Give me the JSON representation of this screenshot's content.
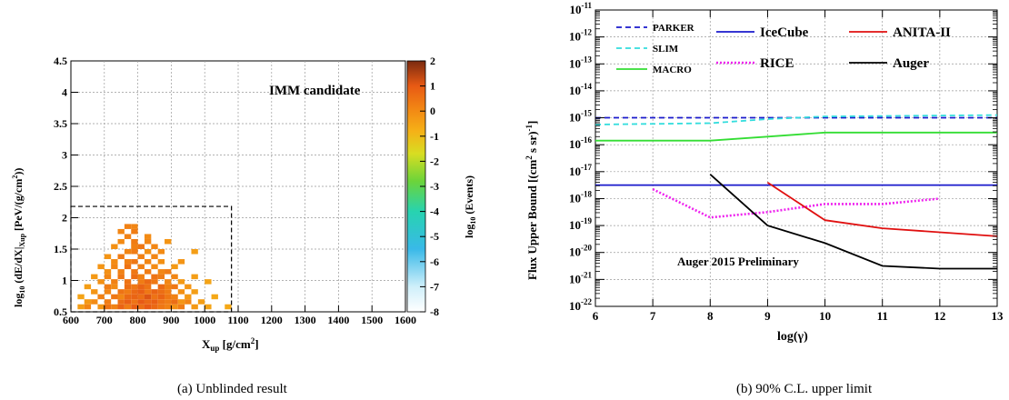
{
  "captions": {
    "left": "(a)  Unblinded result",
    "right": "(b)  90% C.L. upper limit"
  },
  "chart_data": [
    {
      "type": "heatmap",
      "xlabel_main": "X",
      "xlabel_sub": "up",
      "xlabel_rest": " [g/cm",
      "xlabel_sup": "2",
      "xlabel_end": "]",
      "ylabel_main": "log",
      "ylabel_sub1": "10",
      "ylabel_mid": " (dE/dX|",
      "ylabel_sub2": "Xup",
      "ylabel_rest": "    [PeV/(g/cm",
      "ylabel_sup": "2",
      "ylabel_end": "))",
      "zlabel_main": "log",
      "zlabel_sub": "10",
      "zlabel_rest": " (Events)",
      "annotation": "IMM candidate",
      "xlim": [
        600,
        1600
      ],
      "ylim": [
        0.5,
        4.5
      ],
      "zlim": [
        -8,
        2
      ],
      "x_ticks": [
        "600",
        "700",
        "800",
        "900",
        "1000",
        "1100",
        "1200",
        "1300",
        "1400",
        "1500",
        "1600"
      ],
      "y_ticks": [
        "0.5",
        "1",
        "1.5",
        "2",
        "2.5",
        "3",
        "3.5",
        "4",
        "4.5"
      ],
      "z_ticks": [
        "-8",
        "-7",
        "-6",
        "-5",
        "-4",
        "-3",
        "-2",
        "-1",
        "0",
        "1",
        "2"
      ],
      "signal_region": {
        "x": [
          600,
          1080
        ],
        "y": [
          0.5,
          2.18
        ]
      },
      "bin_width": {
        "x": 20,
        "y": 0.08
      },
      "cells": [
        [
          620,
          0.54,
          -0.4
        ],
        [
          640,
          0.54,
          0.1
        ],
        [
          680,
          0.54,
          -0.2
        ],
        [
          700,
          0.54,
          0.5
        ],
        [
          720,
          0.54,
          0.2
        ],
        [
          740,
          0.54,
          0.8
        ],
        [
          760,
          0.54,
          0.3
        ],
        [
          780,
          0.54,
          0.9
        ],
        [
          800,
          0.54,
          0.6
        ],
        [
          820,
          0.54,
          1.0
        ],
        [
          840,
          0.54,
          0.7
        ],
        [
          860,
          0.54,
          0.4
        ],
        [
          880,
          0.54,
          0.2
        ],
        [
          900,
          0.54,
          -0.1
        ],
        [
          920,
          0.54,
          0.3
        ],
        [
          960,
          0.54,
          -0.3
        ],
        [
          1000,
          0.54,
          -0.5
        ],
        [
          1060,
          0.54,
          -0.6
        ],
        [
          640,
          0.62,
          -0.3
        ],
        [
          660,
          0.62,
          0.0
        ],
        [
          700,
          0.62,
          0.3
        ],
        [
          740,
          0.62,
          0.6
        ],
        [
          760,
          0.62,
          0.9
        ],
        [
          780,
          0.62,
          0.5
        ],
        [
          800,
          0.62,
          1.0
        ],
        [
          820,
          0.62,
          0.7
        ],
        [
          840,
          0.62,
          0.9
        ],
        [
          860,
          0.62,
          0.5
        ],
        [
          880,
          0.62,
          0.3
        ],
        [
          900,
          0.62,
          0.6
        ],
        [
          920,
          0.62,
          -0.2
        ],
        [
          940,
          0.62,
          0.1
        ],
        [
          980,
          0.62,
          -0.4
        ],
        [
          620,
          0.7,
          -0.5
        ],
        [
          680,
          0.7,
          0.2
        ],
        [
          720,
          0.7,
          0.4
        ],
        [
          740,
          0.7,
          0.1
        ],
        [
          760,
          0.7,
          0.7
        ],
        [
          780,
          0.7,
          0.8
        ],
        [
          800,
          0.7,
          0.6
        ],
        [
          820,
          0.7,
          1.1
        ],
        [
          840,
          0.7,
          0.5
        ],
        [
          860,
          0.7,
          0.8
        ],
        [
          880,
          0.7,
          0.4
        ],
        [
          900,
          0.7,
          0.2
        ],
        [
          940,
          0.7,
          -0.3
        ],
        [
          1020,
          0.7,
          -0.6
        ],
        [
          660,
          0.78,
          -0.2
        ],
        [
          700,
          0.78,
          0.1
        ],
        [
          740,
          0.78,
          0.5
        ],
        [
          760,
          0.78,
          0.3
        ],
        [
          780,
          0.78,
          0.7
        ],
        [
          800,
          0.78,
          0.9
        ],
        [
          820,
          0.78,
          0.4
        ],
        [
          840,
          0.78,
          0.8
        ],
        [
          860,
          0.78,
          0.6
        ],
        [
          880,
          0.78,
          0.3
        ],
        [
          920,
          0.78,
          -0.1
        ],
        [
          960,
          0.78,
          -0.4
        ],
        [
          640,
          0.86,
          -0.4
        ],
        [
          700,
          0.86,
          0.3
        ],
        [
          720,
          0.86,
          0.0
        ],
        [
          760,
          0.86,
          0.6
        ],
        [
          780,
          0.86,
          0.4
        ],
        [
          800,
          0.86,
          0.8
        ],
        [
          820,
          0.86,
          0.5
        ],
        [
          860,
          0.86,
          0.7
        ],
        [
          880,
          0.86,
          0.2
        ],
        [
          900,
          0.86,
          0.4
        ],
        [
          940,
          0.86,
          -0.2
        ],
        [
          680,
          0.94,
          -0.1
        ],
        [
          720,
          0.94,
          0.2
        ],
        [
          760,
          0.94,
          0.5
        ],
        [
          800,
          0.94,
          0.3
        ],
        [
          820,
          0.94,
          0.7
        ],
        [
          840,
          0.94,
          0.4
        ],
        [
          880,
          0.94,
          0.1
        ],
        [
          920,
          0.94,
          -0.3
        ],
        [
          1000,
          0.94,
          -0.5
        ],
        [
          660,
          1.02,
          -0.3
        ],
        [
          700,
          1.02,
          0.1
        ],
        [
          740,
          1.02,
          0.4
        ],
        [
          780,
          1.02,
          0.6
        ],
        [
          800,
          1.02,
          0.2
        ],
        [
          840,
          1.02,
          0.5
        ],
        [
          860,
          1.02,
          0.3
        ],
        [
          900,
          1.02,
          0.1
        ],
        [
          960,
          1.02,
          -0.4
        ],
        [
          700,
          1.1,
          -0.1
        ],
        [
          740,
          1.1,
          0.2
        ],
        [
          780,
          1.1,
          0.4
        ],
        [
          820,
          1.1,
          0.3
        ],
        [
          860,
          1.1,
          0.1
        ],
        [
          880,
          1.1,
          0.3
        ],
        [
          680,
          1.18,
          -0.2
        ],
        [
          720,
          1.18,
          0.1
        ],
        [
          760,
          1.18,
          0.5
        ],
        [
          800,
          1.18,
          0.2
        ],
        [
          840,
          1.18,
          0.0
        ],
        [
          900,
          1.18,
          -0.3
        ],
        [
          720,
          1.26,
          0.0
        ],
        [
          760,
          1.26,
          0.2
        ],
        [
          780,
          1.26,
          0.4
        ],
        [
          820,
          1.26,
          0.1
        ],
        [
          860,
          1.26,
          -0.1
        ],
        [
          920,
          1.26,
          -0.2
        ],
        [
          700,
          1.34,
          -0.2
        ],
        [
          740,
          1.34,
          0.3
        ],
        [
          800,
          1.34,
          0.2
        ],
        [
          840,
          1.34,
          0.1
        ],
        [
          760,
          1.42,
          0.1
        ],
        [
          780,
          1.42,
          0.3
        ],
        [
          820,
          1.42,
          -0.1
        ],
        [
          860,
          1.42,
          0.0
        ],
        [
          960,
          1.42,
          -0.4
        ],
        [
          720,
          1.5,
          -0.1
        ],
        [
          780,
          1.5,
          0.2
        ],
        [
          800,
          1.5,
          0.4
        ],
        [
          840,
          1.5,
          0.1
        ],
        [
          740,
          1.58,
          0.0
        ],
        [
          780,
          1.58,
          0.3
        ],
        [
          820,
          1.58,
          0.1
        ],
        [
          880,
          1.58,
          -0.2
        ],
        [
          760,
          1.66,
          0.2
        ],
        [
          820,
          1.66,
          0.0
        ],
        [
          740,
          1.74,
          0.1
        ],
        [
          780,
          1.74,
          0.3
        ],
        [
          760,
          1.82,
          0.2
        ],
        [
          780,
          1.82,
          0.1
        ]
      ]
    },
    {
      "type": "line",
      "xlabel": "log(γ)",
      "ylabel_main": "Flux Upper Bound [(cm",
      "ylabel_sup1": "2",
      "ylabel_mid": " s sr)",
      "ylabel_sup2": "-1",
      "ylabel_end": "]",
      "xlim": [
        6,
        13
      ],
      "ylim_exp": [
        -22,
        -11
      ],
      "y_log": true,
      "x_ticks": [
        "6",
        "7",
        "8",
        "9",
        "10",
        "11",
        "12",
        "13"
      ],
      "y_tick_exps": [
        "-22",
        "-21",
        "-20",
        "-19",
        "-18",
        "-17",
        "-16",
        "-15",
        "-14",
        "-13",
        "-12",
        "-11"
      ],
      "annotation": "Auger 2015 Preliminary",
      "series": [
        {
          "name": "PARKER",
          "color": "#1a1acc",
          "dash": "6,4",
          "log_y": [
            [
              6,
              -15.0
            ],
            [
              13,
              -15.0
            ]
          ]
        },
        {
          "name": "SLIM",
          "color": "#33dddd",
          "dash": "6,4",
          "log_y": [
            [
              6,
              -15.25
            ],
            [
              8,
              -15.2
            ],
            [
              9,
              -15.05
            ],
            [
              10,
              -14.95
            ],
            [
              13,
              -14.9
            ]
          ]
        },
        {
          "name": "MACRO",
          "color": "#33dd33",
          "dash": "",
          "log_y": [
            [
              6,
              -15.85
            ],
            [
              8,
              -15.85
            ],
            [
              9,
              -15.7
            ],
            [
              10,
              -15.55
            ],
            [
              13,
              -15.55
            ]
          ]
        },
        {
          "name": "IceCube",
          "color": "#1a1acc",
          "dash": "",
          "log_y": [
            [
              6,
              -17.5
            ],
            [
              13,
              -17.5
            ]
          ]
        },
        {
          "name": "RICE",
          "color": "#ee22ee",
          "dash": "2,2",
          "log_y": [
            [
              7,
              -17.65
            ],
            [
              8,
              -18.7
            ],
            [
              9,
              -18.5
            ],
            [
              10,
              -18.2
            ],
            [
              11,
              -18.2
            ],
            [
              12,
              -18.0
            ]
          ]
        },
        {
          "name": "ANITA-II",
          "color": "#e01010",
          "dash": "",
          "log_y": [
            [
              9,
              -17.4
            ],
            [
              10,
              -18.8
            ],
            [
              11,
              -19.1
            ],
            [
              12,
              -19.25
            ],
            [
              13,
              -19.4
            ]
          ]
        },
        {
          "name": "Auger",
          "color": "#000000",
          "dash": "",
          "log_y": [
            [
              8,
              -17.1
            ],
            [
              9,
              -19.0
            ],
            [
              10,
              -19.65
            ],
            [
              11,
              -20.5
            ],
            [
              12,
              -20.6
            ],
            [
              13,
              -20.6
            ]
          ]
        }
      ]
    }
  ]
}
